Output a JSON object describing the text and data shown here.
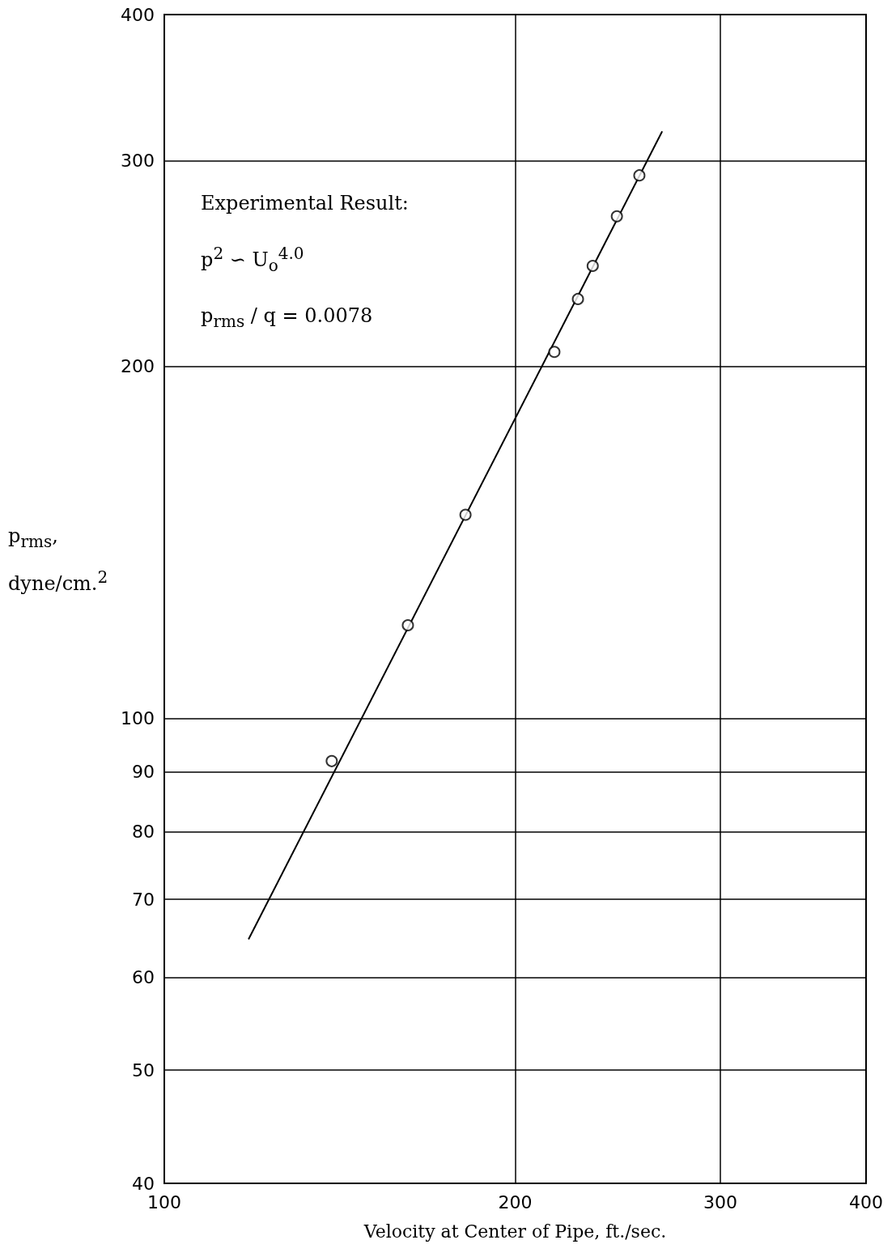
{
  "chart_data": {
    "type": "scatter",
    "xlabel": "Velocity at Center of Pipe, ft./sec.",
    "ylabel": "p$_{rms}$, dyne/cm.$^{2}$",
    "annotations": [
      "Experimental Result:",
      "p$^{2}$ ∽ U$_{o}$$^{4.0}$",
      "p$_{rms}$ / q = 0.0078"
    ],
    "series": [
      {
        "marker": "circle",
        "color": "#000000",
        "x": [
          139.2,
          161.8,
          181.3,
          216.1,
          226.4,
          233.1,
          244.5,
          255.6
        ],
        "values": [
          91.9,
          120.1,
          149.3,
          205.8,
          228.4,
          243.8,
          268.8,
          291.4
        ]
      },
      {
        "type": "line",
        "marker": "none",
        "color": "#000000",
        "x": [
          118.1,
          267.4
        ],
        "values": [
          64.7,
          317.8
        ]
      }
    ],
    "xlim": [
      100,
      400
    ],
    "ylim": [
      40,
      400
    ],
    "xticks": [
      100,
      200,
      300,
      400
    ],
    "yticks": [
      40,
      50,
      60,
      70,
      80,
      90,
      100,
      200,
      300,
      400
    ],
    "log": "xy",
    "grid": true
  }
}
